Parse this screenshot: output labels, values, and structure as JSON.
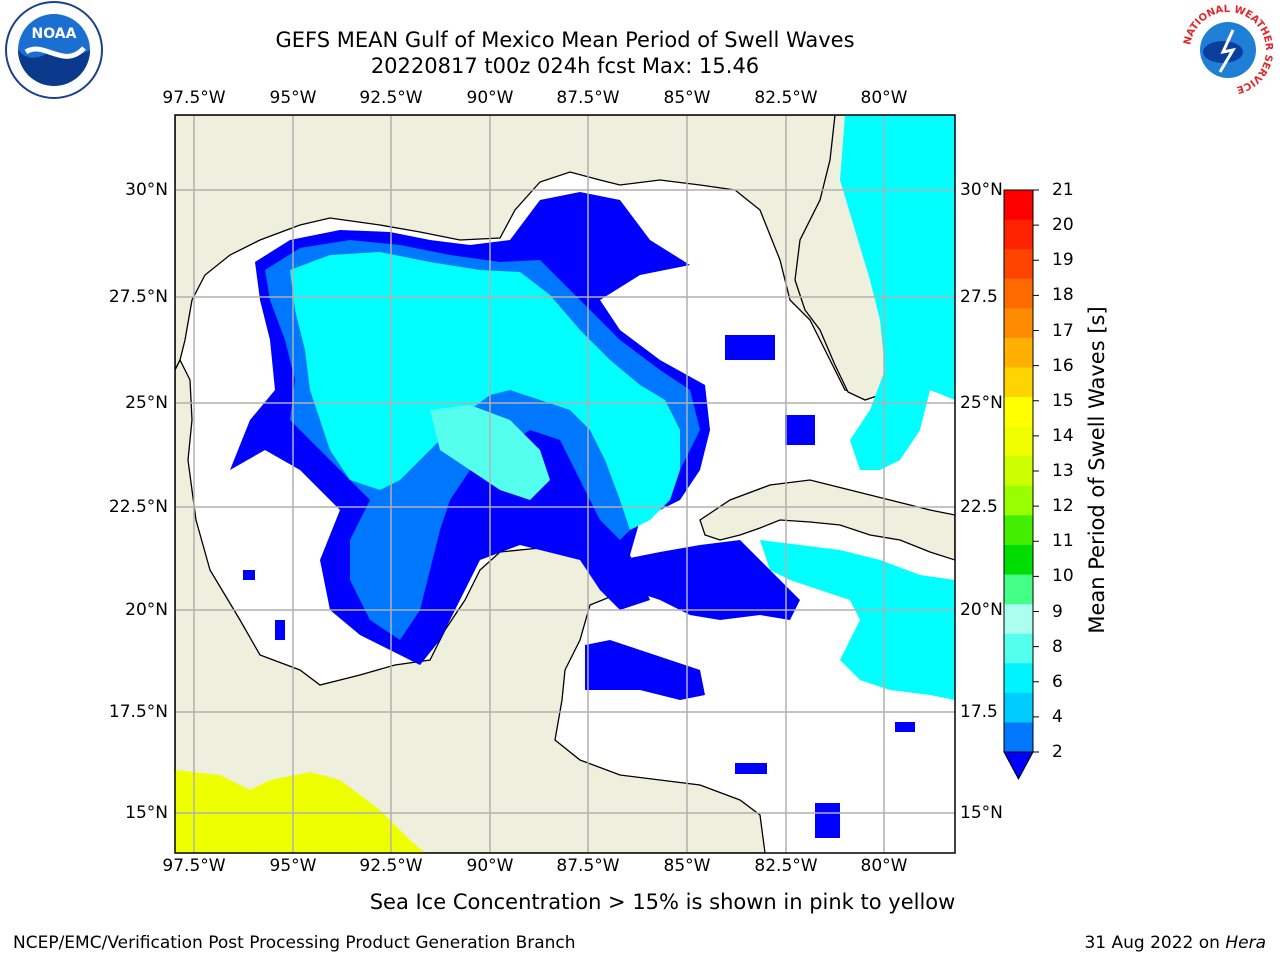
{
  "title_line1": "GEFS MEAN Gulf of Mexico Mean Period of Swell Waves",
  "title_line2": "20220817 t00z 024h fcst   Max: 15.46",
  "lon_ticks": [
    "97.5°W",
    "95°W",
    "92.5°W",
    "90°W",
    "87.5°W",
    "85°W",
    "82.5°W",
    "80°W"
  ],
  "lat_ticks_left": [
    "30°N",
    "27.5°N",
    "25°N",
    "22.5°N",
    "20°N",
    "17.5°N",
    "15°N"
  ],
  "lat_ticks_right": [
    "30°N",
    "27.5",
    "25°N",
    "22.5",
    "20°N",
    "17.5",
    "15°N"
  ],
  "colorbar": {
    "label": "Mean Period of Swell Waves [s]",
    "ticks": [
      "21",
      "20",
      "19",
      "18",
      "17",
      "16",
      "15",
      "14",
      "13",
      "12",
      "11",
      "10",
      "9",
      "8",
      "6",
      "4",
      "2"
    ],
    "colors": [
      "#ff0000",
      "#ff2200",
      "#ff4400",
      "#ff6a00",
      "#ff8c00",
      "#ffb000",
      "#ffd400",
      "#ffff00",
      "#f0ff00",
      "#ccff00",
      "#99ff00",
      "#44ee00",
      "#00dd00",
      "#44ff88",
      "#aaffee",
      "#55ffee",
      "#00f4ff",
      "#00ccff",
      "#0077ff"
    ],
    "extend_color": "#0000ff"
  },
  "colors": {
    "land": "#efefdd",
    "ocean_low": "#ffffff",
    "swell_2_4": "#0000ff",
    "swell_4_6": "#0077ff",
    "swell_6_8": "#00ffff",
    "swell_8_9": "#55ffee",
    "pacific_yellow": "#eeff00",
    "grid": "#b0b0b0"
  },
  "note": "Sea Ice Concentration > 15% is shown in pink to yellow",
  "footer_left": "NCEP/EMC/Verification Post Processing Product Generation Branch",
  "footer_date": "31 Aug 2022 on",
  "footer_host": "Hera",
  "logos": {
    "noaa": "NOAA",
    "nws_ring": "NATIONAL WEATHER SERVICE"
  }
}
